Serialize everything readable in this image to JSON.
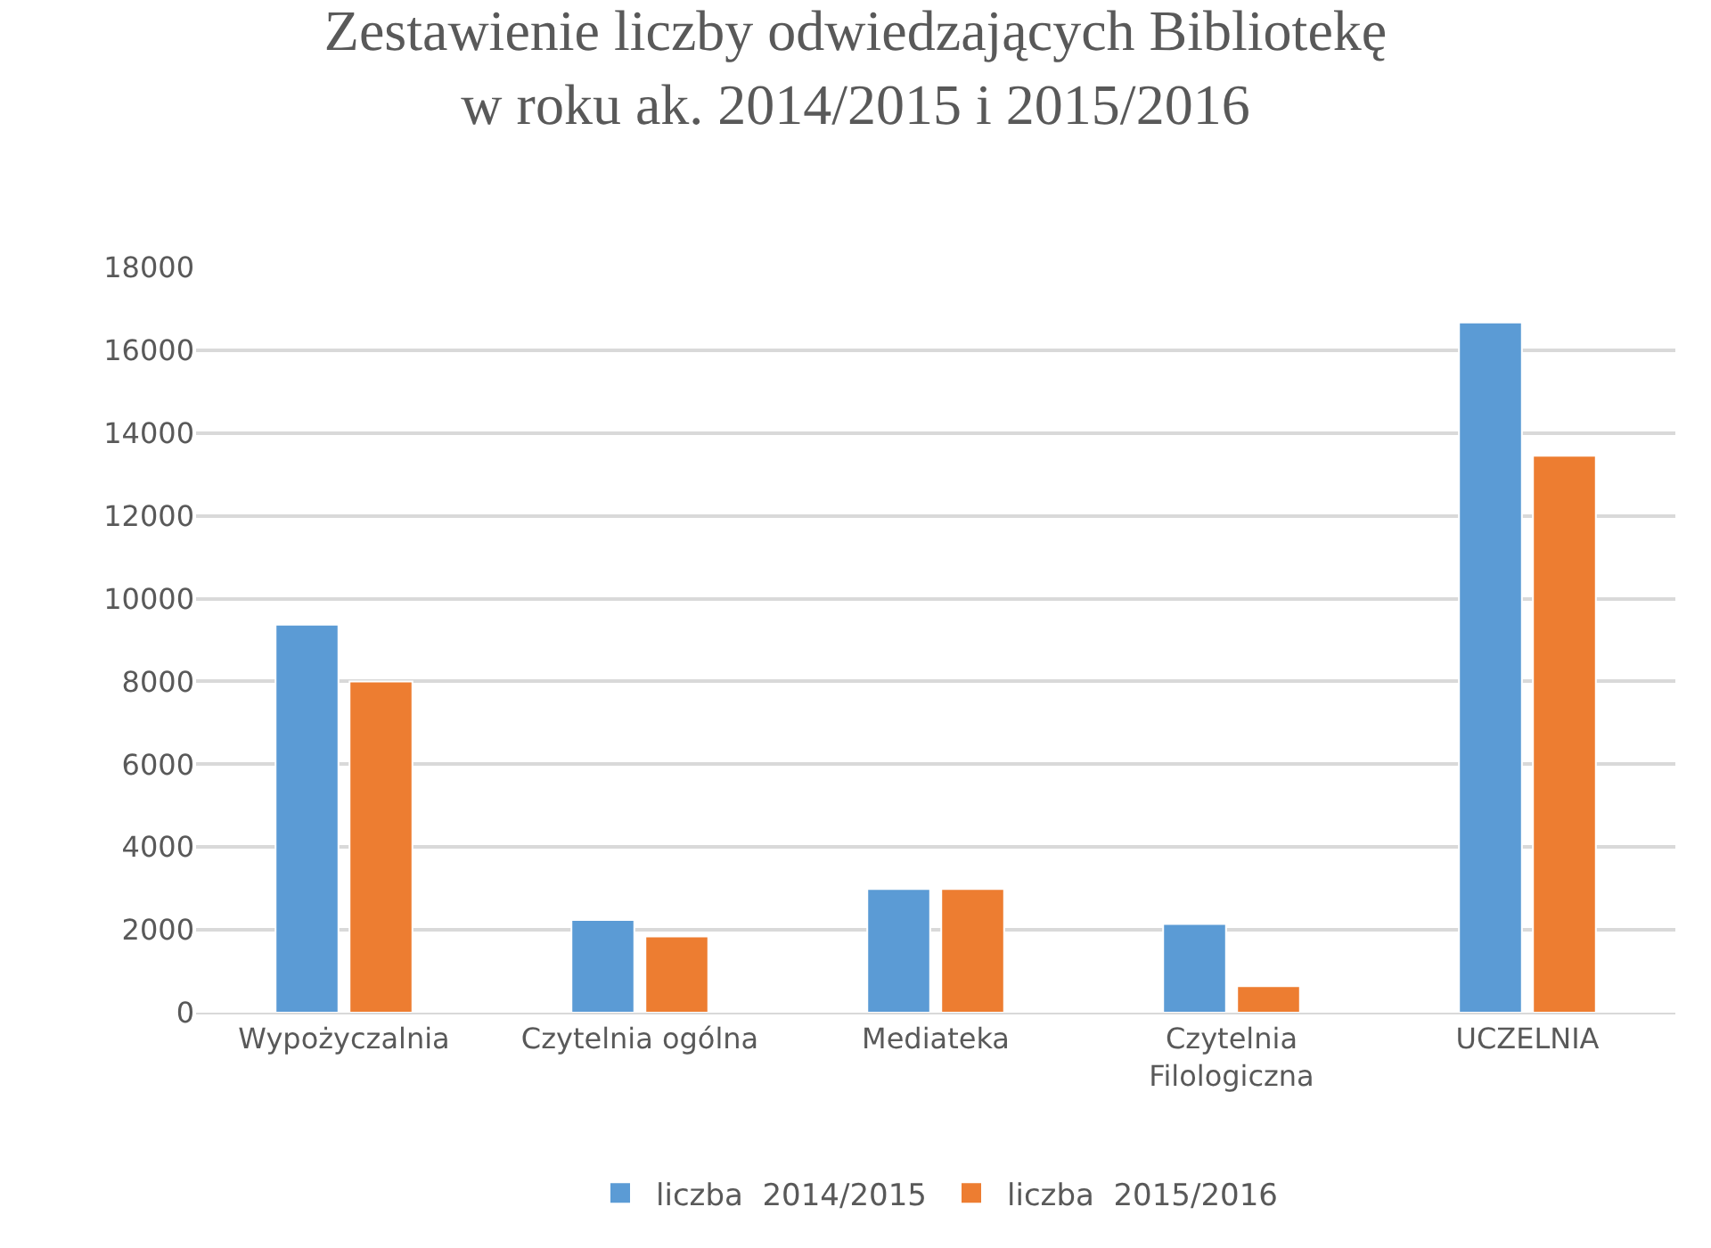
{
  "chart_data": {
    "type": "bar",
    "title": "Zestawienie liczby odwiedzających Bibliotekę\nw roku ak. 2014/2015 i 2015/2016",
    "categories": [
      "Wypożyczalnia",
      "Czytelnia ogólna",
      "Mediateka",
      "Czytelnia\nFilologiczna",
      "UCZELNIA"
    ],
    "series": [
      {
        "name": "liczba  2014/2015",
        "color": "#5b9bd5",
        "values": [
          9370,
          2240,
          2990,
          2140,
          16670
        ]
      },
      {
        "name": "liczba  2015/2016",
        "color": "#ed7d31",
        "values": [
          8000,
          1840,
          2990,
          640,
          13450
        ]
      }
    ],
    "ylim": [
      0,
      18000
    ],
    "yticks": [
      0,
      2000,
      4000,
      6000,
      8000,
      10000,
      12000,
      14000,
      16000,
      18000
    ],
    "grid": "y",
    "legend": "bottom"
  }
}
